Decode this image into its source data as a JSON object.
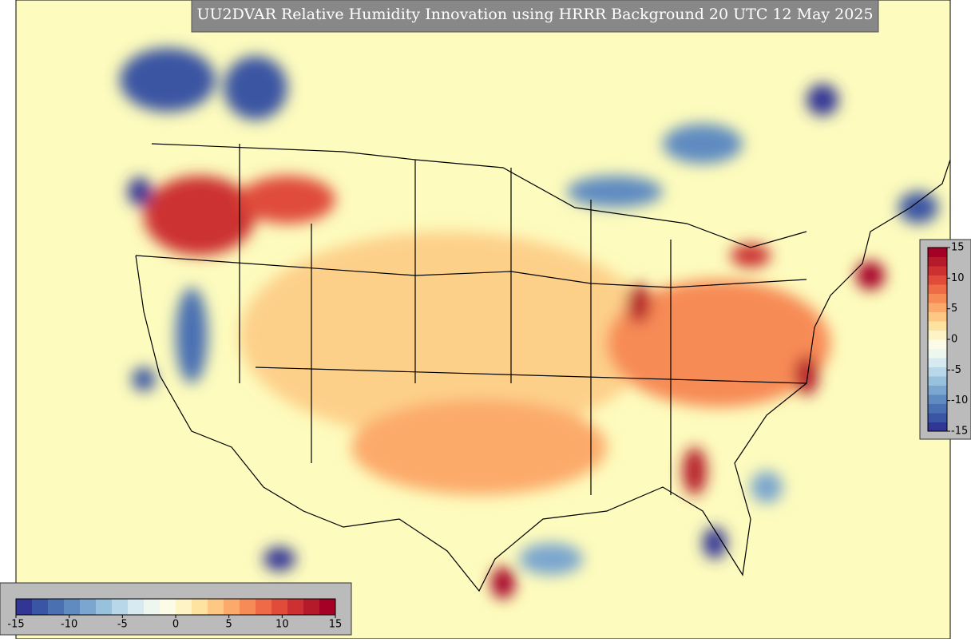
{
  "title": "UU2DVAR Relative Humidity Innovation using HRRR Background 20 UTC 12 May 2025",
  "colormap": [
    "#313695",
    "#3a55a3",
    "#4a70b2",
    "#5f8bc1",
    "#7aa6cf",
    "#98c1dd",
    "#b8d8e9",
    "#d7eaf2",
    "#eef6f0",
    "#fbfbe8",
    "#fdf3c4",
    "#fee3a0",
    "#fdc883",
    "#fcaa6b",
    "#f78b57",
    "#ef6b48",
    "#e04b3a",
    "#cc3030",
    "#b51a2a",
    "#a50026"
  ],
  "colorbars": [
    {
      "orientation": "horizontal",
      "lim": [
        -15,
        15
      ],
      "ticks": [
        -15,
        -10,
        -5,
        0,
        5,
        10,
        15
      ]
    },
    {
      "orientation": "vertical",
      "lim": [
        -15,
        15
      ],
      "ticks": [
        -15,
        -10,
        -5,
        0,
        5,
        10,
        15
      ]
    }
  ]
}
